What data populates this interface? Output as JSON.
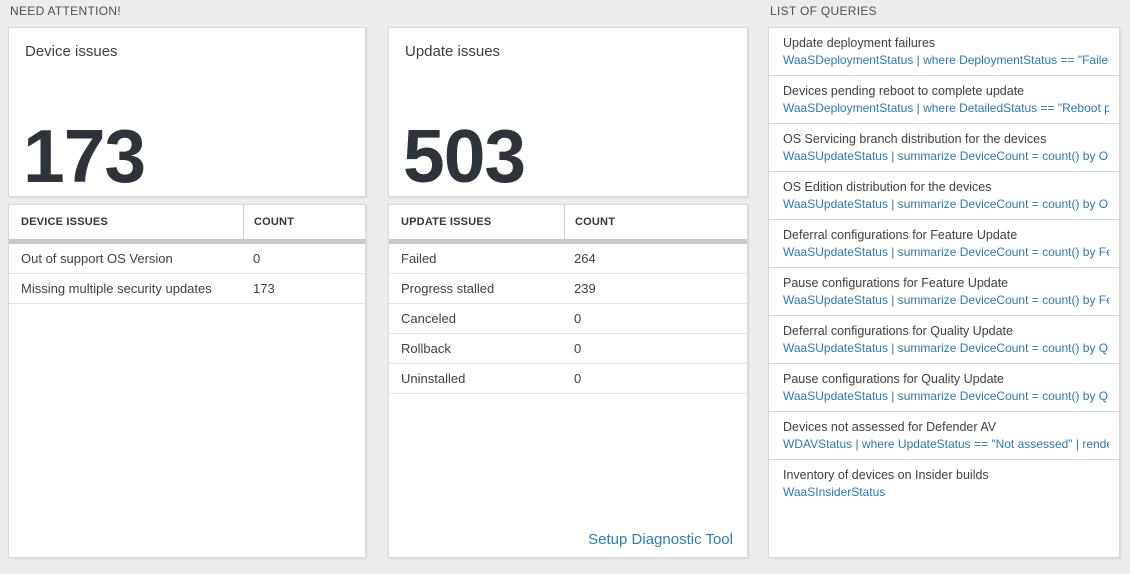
{
  "sections": {
    "need_attention_label": "NEED ATTENTION!",
    "list_of_queries_label": "LIST OF QUERIES"
  },
  "colors": {
    "link_blue": "#2b7cbf",
    "query_blue": "#2b77ba",
    "big_number_color": "#2e333a",
    "page_background": "#ededed"
  },
  "device_card": {
    "title": "Device issues",
    "count": "173"
  },
  "device_table": {
    "headers": {
      "issue": "DEVICE ISSUES",
      "count": "COUNT"
    },
    "rows": [
      {
        "label": "Out of support OS Version",
        "count": "0"
      },
      {
        "label": "Missing multiple security updates",
        "count": "173"
      }
    ]
  },
  "update_card": {
    "title": "Update issues",
    "count": "503"
  },
  "update_table": {
    "headers": {
      "issue": "UPDATE ISSUES",
      "count": "COUNT"
    },
    "rows": [
      {
        "label": "Failed",
        "count": "264"
      },
      {
        "label": "Progress stalled",
        "count": "239"
      },
      {
        "label": "Canceled",
        "count": "0"
      },
      {
        "label": "Rollback",
        "count": "0"
      },
      {
        "label": "Uninstalled",
        "count": "0"
      }
    ],
    "footer_link": "Setup Diagnostic Tool"
  },
  "queries": {
    "items": [
      {
        "title": "Update deployment failures",
        "query": "WaaSDeploymentStatus | where DeploymentStatus == \"Failed\" |..."
      },
      {
        "title": "Devices pending reboot to complete update",
        "query": "WaaSDeploymentStatus | where DetailedStatus == \"Reboot pend..."
      },
      {
        "title": "OS Servicing branch distribution for the devices",
        "query": "WaaSUpdateStatus | summarize DeviceCount = count() by OSSer..."
      },
      {
        "title": "OS Edition distribution for the devices",
        "query": "WaaSUpdateStatus | summarize DeviceCount = count() by OSEdit..."
      },
      {
        "title": "Deferral configurations for Feature Update",
        "query": "WaaSUpdateStatus | summarize DeviceCount = count() by Featur..."
      },
      {
        "title": "Pause configurations for Feature Update",
        "query": "WaaSUpdateStatus | summarize DeviceCount = count() by Featur..."
      },
      {
        "title": "Deferral configurations for Quality Update",
        "query": "WaaSUpdateStatus | summarize DeviceCount = count() by Qualit..."
      },
      {
        "title": "Pause configurations for Quality Update",
        "query": "WaaSUpdateStatus | summarize DeviceCount = count() by Qualit..."
      },
      {
        "title": "Devices not assessed for Defender AV",
        "query": "WDAVStatus | where UpdateStatus == \"Not assessed\" | render ta..."
      },
      {
        "title": "Inventory of devices on Insider builds",
        "query": "WaaSInsiderStatus"
      }
    ]
  }
}
